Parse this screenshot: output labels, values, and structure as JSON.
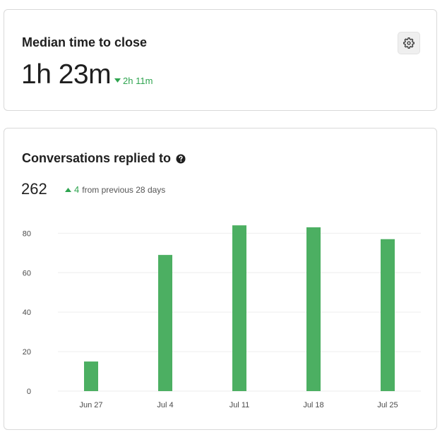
{
  "metric_top": {
    "title": "Median time to close",
    "value": "1h 23m",
    "delta": "2h 11m",
    "delta_direction": "down",
    "settings_icon": "gear-icon"
  },
  "metric_bottom": {
    "title": "Conversations replied to",
    "help_icon": "question-circle-icon",
    "total": "262",
    "delta": "4",
    "delta_direction": "up",
    "delta_note": "from previous 28 days"
  },
  "colors": {
    "positive": "#2ea44f",
    "bar": "#4caf62",
    "grid": "#eeeeee"
  },
  "chart_data": {
    "type": "bar",
    "categories": [
      "Jun 27",
      "Jul 4",
      "Jul 11",
      "Jul 18",
      "Jul 25"
    ],
    "values": [
      15,
      69,
      84,
      83,
      77
    ],
    "yticks": [
      0,
      20,
      40,
      60,
      80
    ],
    "ylim": [
      0,
      88
    ],
    "grid": true,
    "legend": "none"
  }
}
